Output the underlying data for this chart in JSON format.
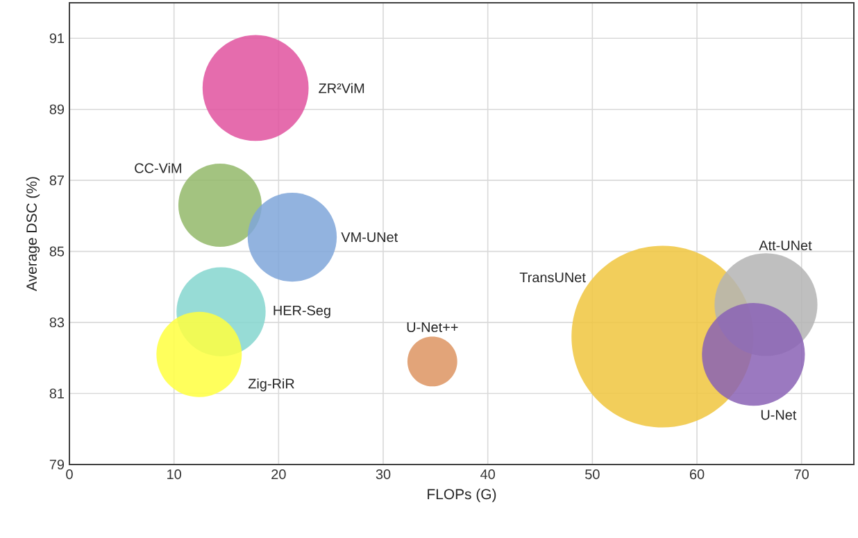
{
  "chart_data": {
    "type": "bubble",
    "xlabel": "FLOPs (G)",
    "ylabel": "Average DSC (%)",
    "xlim": [
      0,
      75
    ],
    "xticks": [
      0,
      10,
      20,
      30,
      40,
      50,
      60,
      70
    ],
    "ylim": [
      79,
      92
    ],
    "yticks": [
      79,
      81,
      83,
      85,
      87,
      89,
      91
    ],
    "grid": true,
    "series": [
      {
        "name": "ZR²ViM",
        "color": "#e0529f",
        "x": [
          17.8
        ],
        "values": [
          89.6
        ],
        "sizes": [
          0.34
        ]
      },
      {
        "name": "CC-ViM",
        "color": "#93b96a",
        "x": [
          14.4
        ],
        "values": [
          86.3
        ],
        "sizes": [
          0.21
        ]
      },
      {
        "name": "VM-UNet",
        "color": "#7fa6d9",
        "x": [
          21.3
        ],
        "values": [
          85.4
        ],
        "sizes": [
          0.24
        ]
      },
      {
        "name": "HER-Seg",
        "color": "#85d6cf",
        "x": [
          14.5
        ],
        "values": [
          83.3
        ],
        "sizes": [
          0.24
        ]
      },
      {
        "name": "Zig-RiR",
        "color": "#ffff40",
        "x": [
          12.4
        ],
        "values": [
          82.1
        ],
        "sizes": [
          0.22
        ]
      },
      {
        "name": "U-Net++",
        "color": "#dd9461",
        "x": [
          34.7
        ],
        "values": [
          81.9
        ],
        "sizes": [
          0.075
        ]
      },
      {
        "name": "TransUNet",
        "color": "#f0c53e",
        "x": [
          56.7
        ],
        "values": [
          82.6
        ],
        "sizes": [
          1
        ]
      },
      {
        "name": "Att-UNet",
        "color": "#b4b4b4",
        "x": [
          66.6
        ],
        "values": [
          83.5
        ],
        "sizes": [
          0.32
        ]
      },
      {
        "name": "U-Net",
        "color": "#8a62b5",
        "x": [
          65.4
        ],
        "values": [
          82.1
        ],
        "sizes": [
          0.32
        ]
      }
    ]
  }
}
